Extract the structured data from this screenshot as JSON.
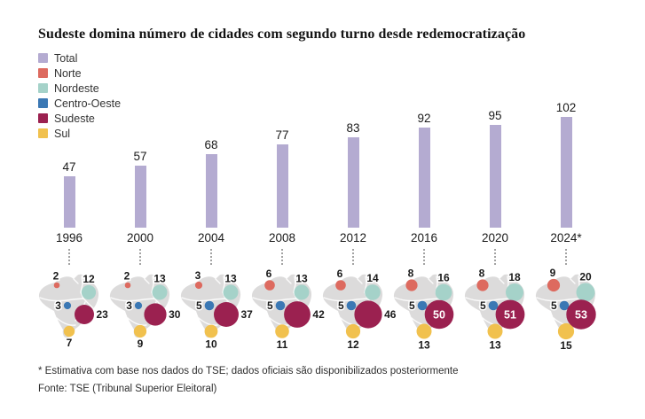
{
  "title": "Sudeste domina número de cidades com segundo turno desde redemocratização",
  "footnote": "* Estimativa com base nos dados do TSE; dados oficiais são disponibilizados posteriormente",
  "source": "Fonte: TSE (Tribunal Superior Eleitoral)",
  "legend": [
    {
      "label": "Total",
      "color": "#b4abd1"
    },
    {
      "label": "Norte",
      "color": "#dd6a5f"
    },
    {
      "label": "Nordeste",
      "color": "#a5d2c9"
    },
    {
      "label": "Centro-Oeste",
      "color": "#3b78b4"
    },
    {
      "label": "Sudeste",
      "color": "#9b2150"
    },
    {
      "label": "Sul",
      "color": "#f1c14e"
    }
  ],
  "colors": {
    "total": "#b4abd1",
    "norte": "#dd6a5f",
    "nordeste": "#a5d2c9",
    "centro_oeste": "#3b78b4",
    "sudeste": "#9b2150",
    "sul": "#f1c14e",
    "map_fill": "#dcdbdb",
    "label_text": "#1a1a1a"
  },
  "chart_data": {
    "type": "bar",
    "title": "Sudeste domina número de cidades com segundo turno desde redemocratização",
    "categories": [
      "1996",
      "2000",
      "2004",
      "2008",
      "2012",
      "2016",
      "2020",
      "2024*"
    ],
    "series": [
      {
        "name": "Total",
        "values": [
          47,
          57,
          68,
          77,
          83,
          92,
          95,
          102
        ]
      },
      {
        "name": "Norte",
        "values": [
          2,
          2,
          3,
          6,
          6,
          8,
          8,
          9
        ]
      },
      {
        "name": "Nordeste",
        "values": [
          12,
          13,
          13,
          13,
          14,
          16,
          18,
          20
        ]
      },
      {
        "name": "Centro-Oeste",
        "values": [
          3,
          3,
          5,
          5,
          5,
          5,
          5,
          5
        ]
      },
      {
        "name": "Sudeste",
        "values": [
          23,
          30,
          37,
          42,
          46,
          50,
          51,
          53
        ]
      },
      {
        "name": "Sul",
        "values": [
          7,
          9,
          10,
          11,
          12,
          13,
          13,
          15
        ]
      }
    ],
    "xlabel": "",
    "ylabel": "",
    "ylim": [
      0,
      102
    ],
    "grid": false,
    "legend_position": "top-left",
    "notes": "Total shown as purple bars with value labels; regional values shown as proportional-area bubbles on small Brazil maps below each year; Sudeste values >= 50 labeled inside the bubble in white"
  }
}
